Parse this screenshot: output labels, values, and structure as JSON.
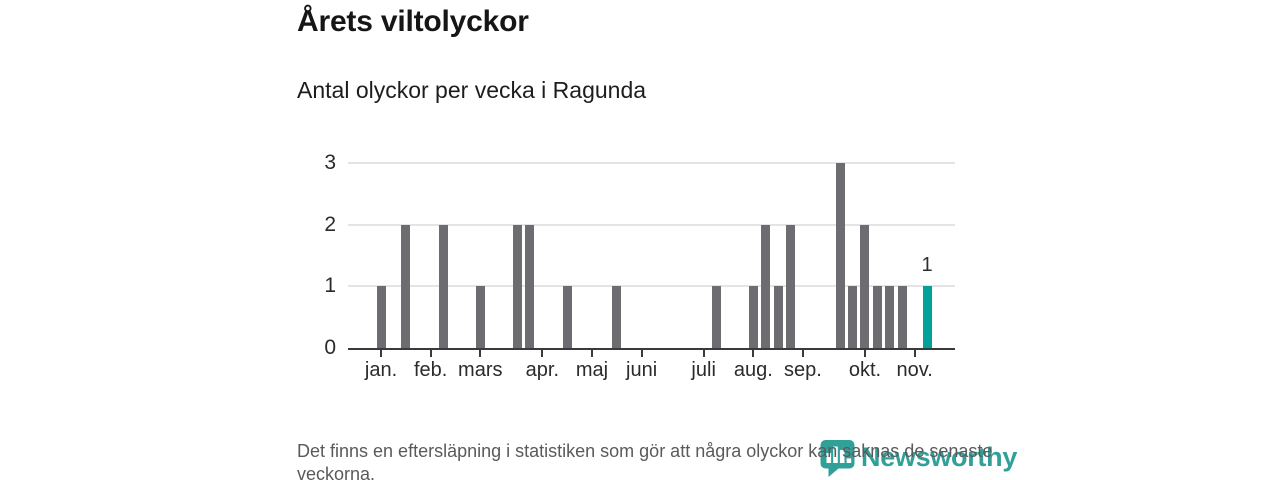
{
  "header": {
    "title": "Årets viltolyckor",
    "subtitle": "Antal olyckor per vecka i Ragunda"
  },
  "footer": {
    "note": "Det finns en eftersläpning i statistiken som gör att några olyckor kan saknas de senaste veckorna.",
    "brand": "Newsworthy"
  },
  "colors": {
    "bar": "#6d6d71",
    "highlight": "#00a29a",
    "grid": "#e4e4e4",
    "axis": "#3a3a3a",
    "logo": "#2a9d95"
  },
  "chart_data": {
    "type": "bar",
    "title": "Årets viltolyckor",
    "subtitle": "Antal olyckor per vecka i Ragunda",
    "x_unit": "vecka",
    "first_week": 1,
    "values": [
      1,
      0,
      2,
      0,
      0,
      2,
      0,
      0,
      1,
      0,
      0,
      2,
      2,
      0,
      0,
      1,
      0,
      0,
      0,
      1,
      0,
      0,
      0,
      0,
      0,
      0,
      0,
      1,
      0,
      0,
      1,
      2,
      1,
      2,
      0,
      0,
      0,
      3,
      1,
      2,
      1,
      1,
      1,
      0,
      1,
      0,
      0
    ],
    "ylim": [
      0,
      3
    ],
    "y_ticks": [
      0,
      1,
      2,
      3
    ],
    "grid": "horizontal",
    "legend": "none",
    "month_ticks": [
      {
        "week": 1,
        "label": "jan."
      },
      {
        "week": 5,
        "label": "feb."
      },
      {
        "week": 9,
        "label": "mars"
      },
      {
        "week": 14,
        "label": "apr."
      },
      {
        "week": 18,
        "label": "maj"
      },
      {
        "week": 22,
        "label": "juni"
      },
      {
        "week": 27,
        "label": "juli"
      },
      {
        "week": 31,
        "label": "aug."
      },
      {
        "week": 35,
        "label": "sep."
      },
      {
        "week": 40,
        "label": "okt."
      },
      {
        "week": 44,
        "label": "nov."
      }
    ],
    "highlight_week": 45,
    "highlight_label": "1"
  }
}
